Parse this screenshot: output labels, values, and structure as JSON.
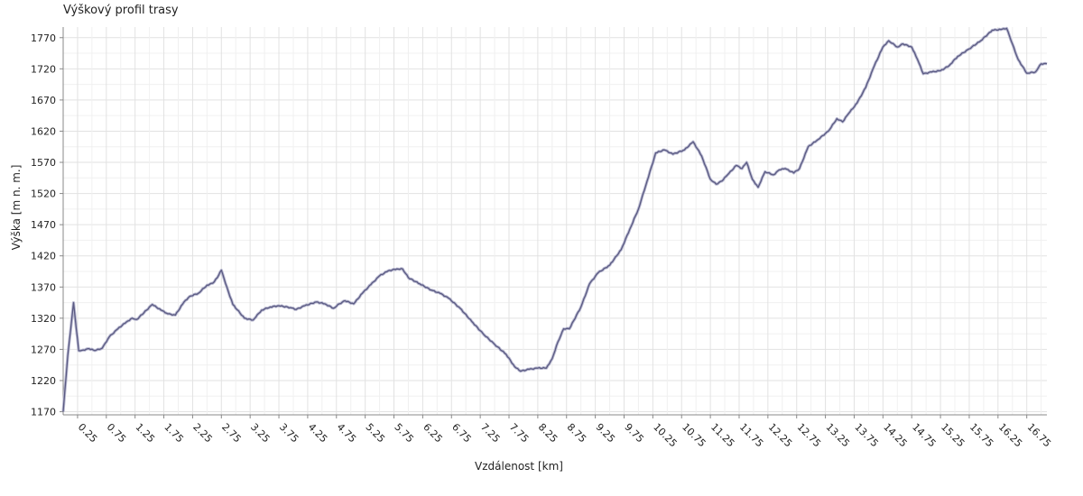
{
  "chart_data": {
    "type": "line",
    "title": "Výškový profil trasy",
    "xlabel": "Vzdálenost [km]",
    "ylabel": "Výška [m n. m.]",
    "xlim": [
      0,
      17.1
    ],
    "ylim": [
      1165,
      1787
    ],
    "grid": true,
    "y_ticks": [
      1170,
      1220,
      1270,
      1320,
      1370,
      1420,
      1470,
      1520,
      1570,
      1620,
      1670,
      1720,
      1770
    ],
    "x_ticks": [
      0.25,
      0.75,
      1.25,
      1.75,
      2.25,
      2.75,
      3.25,
      3.75,
      4.25,
      4.75,
      5.25,
      5.75,
      6.25,
      6.75,
      7.25,
      7.75,
      8.25,
      8.75,
      9.25,
      9.75,
      10.25,
      10.75,
      11.25,
      11.75,
      12.25,
      12.75,
      13.25,
      13.75,
      14.25,
      14.75,
      15.25,
      15.75,
      16.25,
      16.75
    ],
    "line_color": "#5a5a82",
    "series": [
      {
        "x": [
          0,
          0.08,
          0.18,
          0.27,
          0.35,
          0.45,
          0.55,
          0.68,
          0.8,
          0.95,
          1.1,
          1.2,
          1.28,
          1.45,
          1.55,
          1.7,
          1.82,
          1.95,
          2.1,
          2.2,
          2.35,
          2.5,
          2.6,
          2.68,
          2.75,
          2.82,
          2.95,
          3.15,
          3.3,
          3.45,
          3.6,
          3.75,
          3.95,
          4.05,
          4.2,
          4.4,
          4.55,
          4.7,
          4.8,
          4.9,
          5.05,
          5.2,
          5.35,
          5.5,
          5.65,
          5.8,
          5.9,
          6.0,
          6.2,
          6.4,
          6.55,
          6.7,
          6.9,
          7.1,
          7.3,
          7.5,
          7.7,
          7.85,
          7.95,
          8.1,
          8.25,
          8.4,
          8.5,
          8.6,
          8.7,
          8.8,
          9.0,
          9.15,
          9.3,
          9.5,
          9.7,
          9.85,
          10.0,
          10.15,
          10.3,
          10.45,
          10.6,
          10.8,
          10.95,
          11.1,
          11.25,
          11.35,
          11.45,
          11.55,
          11.7,
          11.8,
          11.88,
          11.98,
          12.08,
          12.2,
          12.35,
          12.45,
          12.55,
          12.7,
          12.8,
          12.95,
          13.1,
          13.3,
          13.45,
          13.55,
          13.65,
          13.8,
          13.95,
          14.1,
          14.25,
          14.35,
          14.5,
          14.6,
          14.75,
          14.85,
          14.95,
          15.1,
          15.25,
          15.4,
          15.55,
          15.75,
          15.95,
          16.15,
          16.3,
          16.4,
          16.5,
          16.6,
          16.75,
          16.9,
          17.0,
          17.1
        ],
        "y": [
          1170,
          1260,
          1345,
          1268,
          1269,
          1271,
          1268,
          1272,
          1290,
          1303,
          1314,
          1320,
          1318,
          1333,
          1342,
          1333,
          1327,
          1325,
          1346,
          1355,
          1360,
          1373,
          1376,
          1385,
          1397,
          1376,
          1342,
          1320,
          1317,
          1333,
          1338,
          1340,
          1337,
          1334,
          1340,
          1346,
          1343,
          1336,
          1343,
          1348,
          1343,
          1360,
          1374,
          1388,
          1396,
          1399,
          1399,
          1385,
          1375,
          1365,
          1360,
          1352,
          1336,
          1315,
          1295,
          1278,
          1262,
          1242,
          1235,
          1238,
          1240,
          1240,
          1255,
          1282,
          1303,
          1303,
          1338,
          1375,
          1393,
          1405,
          1430,
          1463,
          1495,
          1540,
          1585,
          1590,
          1583,
          1590,
          1603,
          1580,
          1543,
          1535,
          1540,
          1550,
          1565,
          1560,
          1570,
          1543,
          1530,
          1555,
          1550,
          1558,
          1560,
          1553,
          1560,
          1595,
          1605,
          1620,
          1640,
          1635,
          1648,
          1665,
          1690,
          1725,
          1755,
          1765,
          1755,
          1760,
          1755,
          1735,
          1712,
          1715,
          1717,
          1725,
          1740,
          1752,
          1765,
          1782,
          1783,
          1785,
          1760,
          1735,
          1713,
          1715,
          1728,
          1728
        ]
      }
    ]
  }
}
